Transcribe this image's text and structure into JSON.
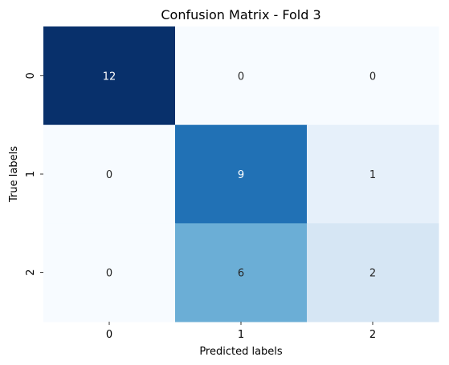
{
  "chart_data": {
    "type": "heatmap",
    "title": "Confusion Matrix - Fold 3",
    "xlabel": "Predicted labels",
    "ylabel": "True labels",
    "x_categories": [
      "0",
      "1",
      "2"
    ],
    "y_categories": [
      "0",
      "1",
      "2"
    ],
    "values": [
      [
        12,
        0,
        0
      ],
      [
        0,
        9,
        1
      ],
      [
        0,
        6,
        2
      ]
    ],
    "colormap": "Blues",
    "colorbar": false,
    "value_range": [
      0,
      12
    ],
    "colors": {
      "low": "#f7fbff",
      "high": "#08306b",
      "text_dark": "#262626",
      "text_light": "#ffffff"
    }
  }
}
